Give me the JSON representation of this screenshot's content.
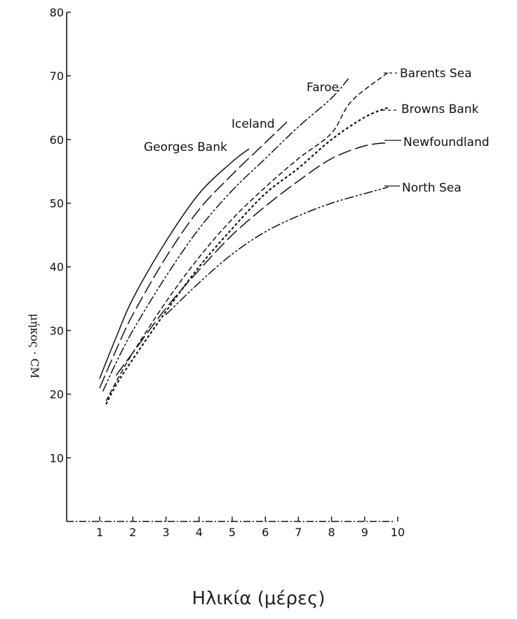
{
  "chart_data": {
    "type": "line",
    "title": "",
    "xlabel": "Ηλικία (μέρες)",
    "ylabel": "μήκος · CM",
    "xlim": [
      0,
      10.5
    ],
    "ylim": [
      0,
      80
    ],
    "x_ticks": [
      1,
      2,
      3,
      4,
      5,
      6,
      7,
      8,
      9,
      10
    ],
    "x_tick_labels": [
      "1",
      "2",
      "3",
      "4",
      "5",
      "6",
      "7",
      "8",
      "9",
      "10"
    ],
    "y_ticks": [
      10,
      20,
      30,
      40,
      50,
      60,
      70,
      80
    ],
    "y_tick_labels": [
      "10",
      "20",
      "30",
      "40",
      "50",
      "60",
      "70",
      "80"
    ],
    "grid": false,
    "legend": "inline labels at line ends",
    "series": [
      {
        "name": "Georges Bank",
        "dash": "solid",
        "x": [
          1,
          1.5,
          2,
          3,
          4,
          5,
          5.5
        ],
        "y": [
          22.5,
          29,
          35,
          44,
          51.5,
          56.5,
          58.5
        ]
      },
      {
        "name": "Iceland",
        "dash": "long-dash",
        "x": [
          1,
          1.5,
          2,
          3,
          4,
          5,
          6,
          6.7
        ],
        "y": [
          21,
          27,
          32.5,
          41.5,
          49,
          54.5,
          59.5,
          63
        ]
      },
      {
        "name": "Faroe",
        "dash": "dash-dot-dot",
        "x": [
          1.1,
          1.5,
          2,
          3,
          4,
          5,
          6,
          7,
          8,
          8.5
        ],
        "y": [
          20.5,
          25,
          30,
          38.5,
          46,
          52,
          57,
          62,
          66.5,
          69.5
        ]
      },
      {
        "name": "Barents Sea",
        "dash": "short-dash",
        "x": [
          1.2,
          1.5,
          2,
          3,
          4,
          5,
          6,
          7,
          8,
          8.6,
          9.7
        ],
        "y": [
          19,
          22,
          26.5,
          34.5,
          41.5,
          47.5,
          52.5,
          57,
          61,
          66,
          70.5
        ]
      },
      {
        "name": "Browns Bank",
        "dash": "dotted",
        "x": [
          1.2,
          1.5,
          2,
          3,
          4,
          5,
          6,
          7,
          8,
          9,
          9.7
        ],
        "y": [
          18.5,
          21.5,
          25.5,
          33,
          40,
          46,
          51.5,
          55.5,
          60,
          63.5,
          65
        ]
      },
      {
        "name": "Newfoundland",
        "dash": "long-dash",
        "x": [
          1.5,
          2,
          3,
          4,
          5,
          6,
          7,
          8,
          9,
          9.7
        ],
        "y": [
          23,
          26.5,
          33.5,
          39.5,
          45,
          49.5,
          53.5,
          57,
          59,
          59.5
        ]
      },
      {
        "name": "North Sea",
        "dash": "dash-dot-dot",
        "x": [
          3,
          4,
          5,
          6,
          7,
          8,
          9,
          9.7
        ],
        "y": [
          32.5,
          37.5,
          42,
          45.5,
          48,
          50,
          51.5,
          52.5
        ]
      }
    ],
    "series_labels": [
      {
        "name": "Barents Sea",
        "text": "Barents Sea"
      },
      {
        "name": "Browns Bank",
        "text": "Browns Bank"
      },
      {
        "name": "Newfoundland",
        "text": "Newfoundland"
      },
      {
        "name": "North Sea",
        "text": "North Sea"
      },
      {
        "name": "Georges Bank",
        "text": "Georges Bank"
      },
      {
        "name": "Iceland",
        "text": "Iceland"
      },
      {
        "name": "Faroe",
        "text": "Faroe"
      }
    ]
  }
}
